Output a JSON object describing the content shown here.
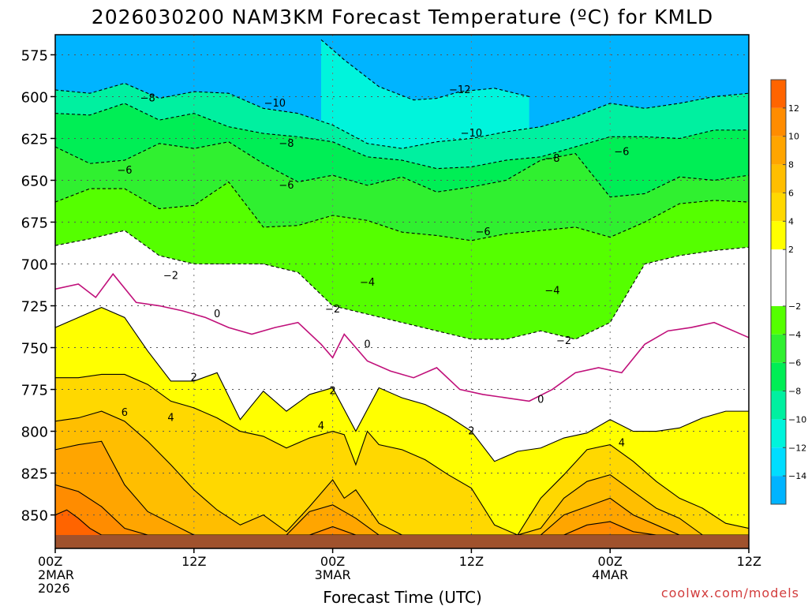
{
  "chart_data": {
    "type": "heatmap",
    "title": "2026030200 NAM3KM Forecast Temperature (ºC) for KMLD",
    "xlabel": "Forecast Time (UTC)",
    "ylabel": "",
    "credit": "coolwx.com/models",
    "x_ticks": [
      {
        "hour": 0,
        "lines": [
          "00Z",
          "2MAR",
          "2026"
        ]
      },
      {
        "hour": 12,
        "lines": [
          "12Z"
        ]
      },
      {
        "hour": 24,
        "lines": [
          "00Z",
          "3MAR"
        ]
      },
      {
        "hour": 36,
        "lines": [
          "12Z"
        ]
      },
      {
        "hour": 48,
        "lines": [
          "00Z",
          "4MAR"
        ]
      },
      {
        "hour": 60,
        "lines": [
          "12Z"
        ]
      }
    ],
    "xlim": [
      0,
      60
    ],
    "y_ticks": [
      575,
      600,
      625,
      650,
      675,
      700,
      725,
      750,
      775,
      800,
      825,
      850
    ],
    "ylim": [
      563,
      870
    ],
    "ground_level_hPa": 862,
    "colorbar": {
      "labels": [
        12,
        10,
        8,
        6,
        4,
        2,
        -2,
        -4,
        -6,
        -8,
        -10,
        -12,
        -14
      ],
      "bands": [
        {
          "lo": 12,
          "hi": 14,
          "color": "#ff6400"
        },
        {
          "lo": 10,
          "hi": 12,
          "color": "#ff8c00"
        },
        {
          "lo": 8,
          "hi": 10,
          "color": "#ffa500"
        },
        {
          "lo": 6,
          "hi": 8,
          "color": "#ffbe00"
        },
        {
          "lo": 4,
          "hi": 6,
          "color": "#ffd800"
        },
        {
          "lo": 2,
          "hi": 4,
          "color": "#ffff00"
        },
        {
          "lo": -2,
          "hi": 2,
          "color": "#ffffff"
        },
        {
          "lo": -4,
          "hi": -2,
          "color": "#55ff00"
        },
        {
          "lo": -6,
          "hi": -4,
          "color": "#30f030"
        },
        {
          "lo": -8,
          "hi": -6,
          "color": "#00ee55"
        },
        {
          "lo": -10,
          "hi": -8,
          "color": "#00f0a0"
        },
        {
          "lo": -12,
          "hi": -10,
          "color": "#00f4dc"
        },
        {
          "lo": -14,
          "hi": -12,
          "color": "#00ddff"
        },
        {
          "lo": -16,
          "hi": -14,
          "color": "#00b4ff"
        }
      ]
    },
    "isotherms": [
      {
        "level": -12,
        "style": "dashed",
        "hours": [
          23,
          25,
          28,
          31,
          33,
          35,
          38,
          41
        ],
        "pressure_hPa": [
          566,
          578,
          594,
          602,
          601,
          597,
          595,
          600
        ]
      },
      {
        "level": -10,
        "style": "dashed",
        "hours": [
          0,
          3,
          6,
          9,
          12,
          15,
          18,
          21,
          24,
          27,
          30,
          33,
          36,
          39,
          42,
          45,
          48,
          51,
          54,
          57,
          60
        ],
        "pressure_hPa": [
          596,
          598,
          592,
          601,
          597,
          598,
          607,
          610,
          617,
          628,
          631,
          627,
          625,
          621,
          618,
          612,
          604,
          607,
          604,
          600,
          598
        ]
      },
      {
        "level": -8,
        "style": "dashed",
        "hours": [
          0,
          3,
          6,
          9,
          12,
          15,
          18,
          21,
          24,
          27,
          30,
          33,
          36,
          39,
          42,
          45,
          48,
          51,
          54,
          57,
          60
        ],
        "pressure_hPa": [
          610,
          611,
          604,
          614,
          610,
          618,
          622,
          624,
          627,
          636,
          638,
          643,
          642,
          638,
          636,
          630,
          624,
          624,
          625,
          620,
          620
        ]
      },
      {
        "level": -6,
        "style": "dashed",
        "hours": [
          0,
          3,
          6,
          9,
          12,
          15,
          18,
          21,
          24,
          27,
          30,
          33,
          36,
          39,
          42,
          45,
          48,
          51,
          54,
          57,
          60
        ],
        "pressure_hPa": [
          630,
          640,
          638,
          628,
          631,
          627,
          640,
          651,
          647,
          653,
          648,
          657,
          654,
          650,
          638,
          634,
          660,
          658,
          648,
          650,
          647
        ]
      },
      {
        "level": -4,
        "style": "dashed",
        "hours": [
          0,
          3,
          6,
          9,
          12,
          15,
          18,
          21,
          24,
          27,
          30,
          33,
          36,
          39,
          42,
          45,
          48,
          51,
          54,
          57,
          60
        ],
        "pressure_hPa": [
          663,
          655,
          655,
          667,
          665,
          651,
          678,
          677,
          671,
          674,
          681,
          683,
          686,
          682,
          680,
          678,
          684,
          675,
          664,
          662,
          663
        ]
      },
      {
        "level": -2,
        "style": "dashed",
        "hours": [
          0,
          3,
          6,
          9,
          12,
          15,
          18,
          21,
          24,
          27,
          30,
          33,
          36,
          39,
          42,
          45,
          48,
          51,
          54,
          57,
          60
        ],
        "pressure_hPa": [
          689,
          685,
          680,
          695,
          700,
          700,
          700,
          705,
          725,
          730,
          735,
          740,
          745,
          745,
          740,
          745,
          735,
          700,
          695,
          692,
          690
        ]
      },
      {
        "level": 0,
        "style": "solid",
        "hours": [
          0,
          2,
          3.5,
          5,
          7,
          9,
          11,
          13,
          15,
          17,
          19,
          21,
          23,
          24,
          25,
          27,
          29,
          31,
          33,
          35,
          37,
          39,
          41,
          43,
          45,
          47,
          49,
          51,
          53,
          55,
          57,
          60
        ],
        "pressure_hPa": [
          715,
          712,
          720,
          706,
          723,
          725,
          728,
          732,
          738,
          742,
          738,
          735,
          748,
          756,
          742,
          758,
          764,
          768,
          762,
          775,
          778,
          780,
          782,
          775,
          765,
          762,
          765,
          748,
          740,
          738,
          735,
          744
        ]
      },
      {
        "level": 2,
        "style": "solid",
        "hours": [
          0,
          2,
          4,
          6,
          8,
          10,
          12,
          14,
          16,
          18,
          20,
          22,
          24,
          26,
          28,
          30,
          32,
          34,
          36,
          38,
          40,
          42,
          44,
          46,
          48,
          50,
          52,
          54,
          56,
          58,
          60
        ],
        "pressure_hPa": [
          738,
          732,
          726,
          732,
          752,
          770,
          770,
          765,
          793,
          776,
          788,
          778,
          774,
          800,
          774,
          780,
          784,
          791,
          800,
          818,
          812,
          810,
          804,
          801,
          793,
          800,
          800,
          798,
          792,
          788,
          788
        ]
      },
      {
        "level": 4,
        "style": "solid",
        "hours": [
          0,
          2,
          4,
          6,
          8,
          10,
          12,
          14,
          16,
          18,
          20,
          22,
          24,
          25,
          26,
          27,
          28,
          30,
          32,
          34,
          36,
          38,
          40,
          42,
          44,
          46,
          48,
          50,
          52,
          54,
          56,
          58,
          60
        ],
        "pressure_hPa": [
          768,
          768,
          766,
          766,
          772,
          782,
          786,
          792,
          800,
          803,
          810,
          804,
          800,
          802,
          820,
          800,
          808,
          811,
          817,
          826,
          834,
          856,
          862,
          840,
          826,
          811,
          808,
          818,
          830,
          840,
          846,
          855,
          858
        ]
      },
      {
        "level": 6,
        "style": "solid",
        "hours": [
          0,
          2,
          4,
          6,
          8,
          10,
          12,
          14,
          16,
          18,
          20,
          22,
          24,
          25,
          26,
          27,
          28,
          30,
          32,
          34,
          36,
          38,
          40,
          42,
          44,
          46,
          48,
          50,
          52,
          54,
          56,
          58,
          60
        ],
        "pressure_hPa": [
          794,
          792,
          788,
          794,
          806,
          820,
          835,
          847,
          856,
          850,
          860,
          845,
          829,
          840,
          835,
          845,
          855,
          862,
          862,
          862,
          862,
          862,
          862,
          858,
          840,
          830,
          826,
          836,
          846,
          852,
          862,
          862,
          862
        ]
      },
      {
        "level": 8,
        "style": "solid",
        "hours": [
          0,
          2,
          4,
          6,
          8,
          10,
          12,
          14,
          16,
          18,
          20,
          22,
          24,
          26,
          28,
          30,
          32,
          34,
          36,
          38,
          40,
          42,
          44,
          46,
          48,
          50,
          52,
          54,
          56,
          58,
          60
        ],
        "pressure_hPa": [
          811,
          808,
          806,
          832,
          848,
          855,
          862,
          862,
          862,
          862,
          862,
          848,
          844,
          852,
          862,
          862,
          862,
          862,
          862,
          862,
          862,
          862,
          850,
          845,
          840,
          850,
          856,
          862,
          862,
          862,
          862
        ]
      },
      {
        "level": 10,
        "style": "solid",
        "hours": [
          0,
          2,
          4,
          6,
          8,
          10,
          12,
          14,
          16,
          18,
          20,
          22,
          24,
          26,
          28,
          30,
          32,
          34,
          36,
          38,
          40,
          42,
          44,
          46,
          48,
          50,
          52,
          54,
          56,
          58,
          60
        ],
        "pressure_hPa": [
          832,
          836,
          845,
          858,
          862,
          862,
          862,
          862,
          862,
          862,
          862,
          862,
          857,
          862,
          862,
          862,
          862,
          862,
          862,
          862,
          862,
          862,
          862,
          856,
          854,
          860,
          862,
          862,
          862,
          862,
          862
        ]
      },
      {
        "level": 12,
        "style": "solid",
        "hours": [
          0,
          1,
          2,
          3,
          4,
          6,
          60
        ],
        "pressure_hPa": [
          850,
          847,
          852,
          858,
          862,
          862,
          862
        ]
      }
    ],
    "contour_labels": [
      {
        "text": "-8",
        "hour": 8,
        "hPa": 601
      },
      {
        "text": "-10",
        "hour": 19,
        "hPa": 604
      },
      {
        "text": "-12",
        "hour": 35,
        "hPa": 596
      },
      {
        "text": "-10",
        "hour": 36,
        "hPa": 622
      },
      {
        "text": "-6",
        "hour": 6,
        "hPa": 644
      },
      {
        "text": "-8",
        "hour": 20,
        "hPa": 628
      },
      {
        "text": "-6",
        "hour": 20,
        "hPa": 653
      },
      {
        "text": "-8",
        "hour": 43,
        "hPa": 637
      },
      {
        "text": "-6",
        "hour": 49,
        "hPa": 633
      },
      {
        "text": "-6",
        "hour": 37,
        "hPa": 681
      },
      {
        "text": "-2",
        "hour": 10,
        "hPa": 707
      },
      {
        "text": "-4",
        "hour": 27,
        "hPa": 711
      },
      {
        "text": "-4",
        "hour": 43,
        "hPa": 716
      },
      {
        "text": "-2",
        "hour": 24,
        "hPa": 727
      },
      {
        "text": "-2",
        "hour": 44,
        "hPa": 746
      },
      {
        "text": "0",
        "hour": 14,
        "hPa": 730
      },
      {
        "text": "0",
        "hour": 27,
        "hPa": 748
      },
      {
        "text": "0",
        "hour": 42,
        "hPa": 781
      },
      {
        "text": "2",
        "hour": 12,
        "hPa": 768
      },
      {
        "text": "2",
        "hour": 24,
        "hPa": 776
      },
      {
        "text": "2",
        "hour": 36,
        "hPa": 800
      },
      {
        "text": "6",
        "hour": 6,
        "hPa": 789
      },
      {
        "text": "4",
        "hour": 10,
        "hPa": 792
      },
      {
        "text": "4",
        "hour": 23,
        "hPa": 797
      },
      {
        "text": "4",
        "hour": 49,
        "hPa": 807
      }
    ]
  }
}
